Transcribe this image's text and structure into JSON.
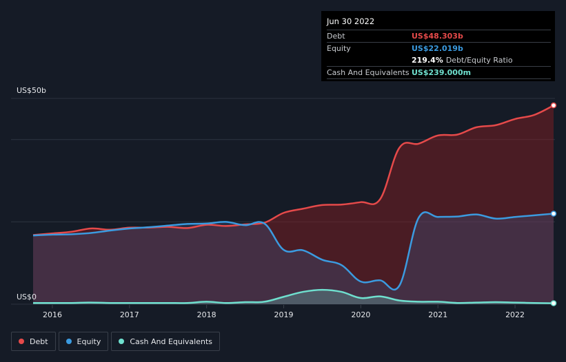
{
  "tooltip": {
    "date": "Jun 30 2022",
    "debt_label": "Debt",
    "debt_value": "US$48.303b",
    "equity_label": "Equity",
    "equity_value": "US$22.019b",
    "ratio_value": "219.4%",
    "ratio_label": "Debt/Equity Ratio",
    "cash_label": "Cash And Equivalents",
    "cash_value": "US$239.000m"
  },
  "legend": [
    {
      "name": "Debt",
      "color": "#e64a4a"
    },
    {
      "name": "Equity",
      "color": "#3b9be0"
    },
    {
      "name": "Cash And Equivalents",
      "color": "#6fe0cf"
    }
  ],
  "colors": {
    "debt": "#e64a4a",
    "equity": "#3b9be0",
    "cash": "#6fe0cf",
    "background": "#151b26"
  },
  "chart_data": {
    "type": "area",
    "y_top_label": "US$50b",
    "y_bottom_label": "US$0",
    "ylim": [
      0,
      50
    ],
    "xlim": [
      2015.7,
      2022.5
    ],
    "x_ticks": [
      {
        "value": 2016,
        "label": "2016"
      },
      {
        "value": 2017,
        "label": "2017"
      },
      {
        "value": 2018,
        "label": "2018"
      },
      {
        "value": 2019,
        "label": "2019"
      },
      {
        "value": 2020,
        "label": "2020"
      },
      {
        "value": 2021,
        "label": "2021"
      },
      {
        "value": 2022,
        "label": "2022"
      }
    ],
    "series": [
      {
        "name": "Debt",
        "x": [
          2015.75,
          2016.0,
          2016.25,
          2016.5,
          2016.75,
          2017.0,
          2017.25,
          2017.5,
          2017.75,
          2018.0,
          2018.25,
          2018.5,
          2018.75,
          2019.0,
          2019.25,
          2019.5,
          2019.75,
          2020.0,
          2020.25,
          2020.5,
          2020.75,
          2021.0,
          2021.25,
          2021.5,
          2021.75,
          2022.0,
          2022.25,
          2022.5
        ],
        "values": [
          16.8,
          17.2,
          17.6,
          18.4,
          18.1,
          18.6,
          18.6,
          18.8,
          18.5,
          19.3,
          19.0,
          19.4,
          19.8,
          22.2,
          23.2,
          24.1,
          24.2,
          24.8,
          25.5,
          38.0,
          39.0,
          41.0,
          41.2,
          43.0,
          43.5,
          45.0,
          46.0,
          48.3
        ]
      },
      {
        "name": "Equity",
        "x": [
          2015.75,
          2016.0,
          2016.25,
          2016.5,
          2016.75,
          2017.0,
          2017.25,
          2017.5,
          2017.75,
          2018.0,
          2018.25,
          2018.5,
          2018.75,
          2019.0,
          2019.25,
          2019.5,
          2019.75,
          2020.0,
          2020.25,
          2020.5,
          2020.75,
          2021.0,
          2021.25,
          2021.5,
          2021.75,
          2022.0,
          2022.25,
          2022.5
        ],
        "values": [
          16.7,
          16.9,
          17.0,
          17.3,
          17.9,
          18.4,
          18.7,
          19.1,
          19.5,
          19.6,
          20.0,
          19.2,
          19.6,
          13.2,
          13.1,
          10.8,
          9.5,
          5.5,
          5.8,
          4.5,
          21.0,
          21.2,
          21.3,
          21.8,
          20.8,
          21.2,
          21.6,
          22.0
        ]
      },
      {
        "name": "Cash And Equivalents",
        "x": [
          2015.75,
          2016.0,
          2016.25,
          2016.5,
          2016.75,
          2017.0,
          2017.25,
          2017.5,
          2017.75,
          2018.0,
          2018.25,
          2018.5,
          2018.75,
          2019.0,
          2019.25,
          2019.5,
          2019.75,
          2020.0,
          2020.25,
          2020.5,
          2020.75,
          2021.0,
          2021.25,
          2021.5,
          2021.75,
          2022.0,
          2022.25,
          2022.5
        ],
        "values": [
          0.3,
          0.3,
          0.3,
          0.4,
          0.3,
          0.3,
          0.3,
          0.3,
          0.3,
          0.6,
          0.3,
          0.5,
          0.6,
          1.8,
          3.0,
          3.5,
          3.0,
          1.5,
          1.9,
          0.9,
          0.6,
          0.6,
          0.3,
          0.4,
          0.5,
          0.4,
          0.3,
          0.24
        ]
      }
    ]
  }
}
